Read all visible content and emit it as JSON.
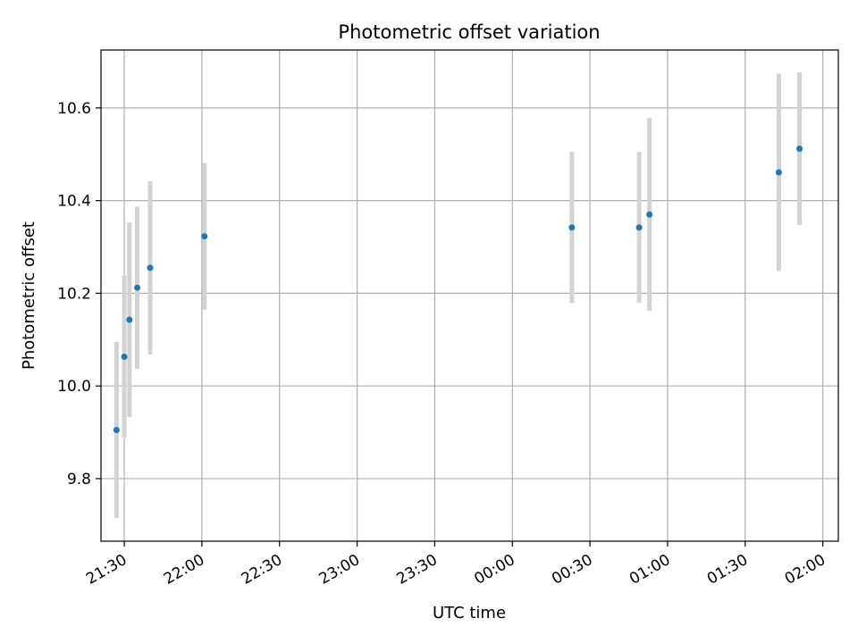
{
  "chart_data": {
    "type": "scatter",
    "title": "Photometric offset variation",
    "xlabel": "UTC time",
    "ylabel": "Photometric offset",
    "x_ticks": [
      "21:30",
      "22:00",
      "22:30",
      "23:00",
      "23:30",
      "00:00",
      "00:30",
      "01:00",
      "01:30",
      "02:00"
    ],
    "y_ticks": [
      "9.8",
      "10.0",
      "10.2",
      "10.4",
      "10.6"
    ],
    "xlim": [
      "21:21",
      "02:06"
    ],
    "ylim": [
      9.665,
      10.725
    ],
    "grid": true,
    "series": [
      {
        "points": [
          {
            "x": "21:27",
            "y": 9.905,
            "err": 0.19
          },
          {
            "x": "21:30",
            "y": 10.063,
            "err": 0.175
          },
          {
            "x": "21:32",
            "y": 10.143,
            "err": 0.21
          },
          {
            "x": "21:35",
            "y": 10.212,
            "err": 0.175
          },
          {
            "x": "21:40",
            "y": 10.255,
            "err": 0.187
          },
          {
            "x": "22:01",
            "y": 10.323,
            "err": 0.158
          },
          {
            "x": "00:23",
            "y": 10.342,
            "err": 0.163
          },
          {
            "x": "00:49",
            "y": 10.342,
            "err": 0.163
          },
          {
            "x": "00:53",
            "y": 10.37,
            "err": 0.208
          },
          {
            "x": "01:43",
            "y": 10.461,
            "err": 0.213
          },
          {
            "x": "01:51",
            "y": 10.512,
            "err": 0.165
          }
        ]
      }
    ],
    "colors": {
      "marker": "#1f77b4",
      "errorbar": "#d3d3d3",
      "grid": "#b0b0b0"
    }
  }
}
